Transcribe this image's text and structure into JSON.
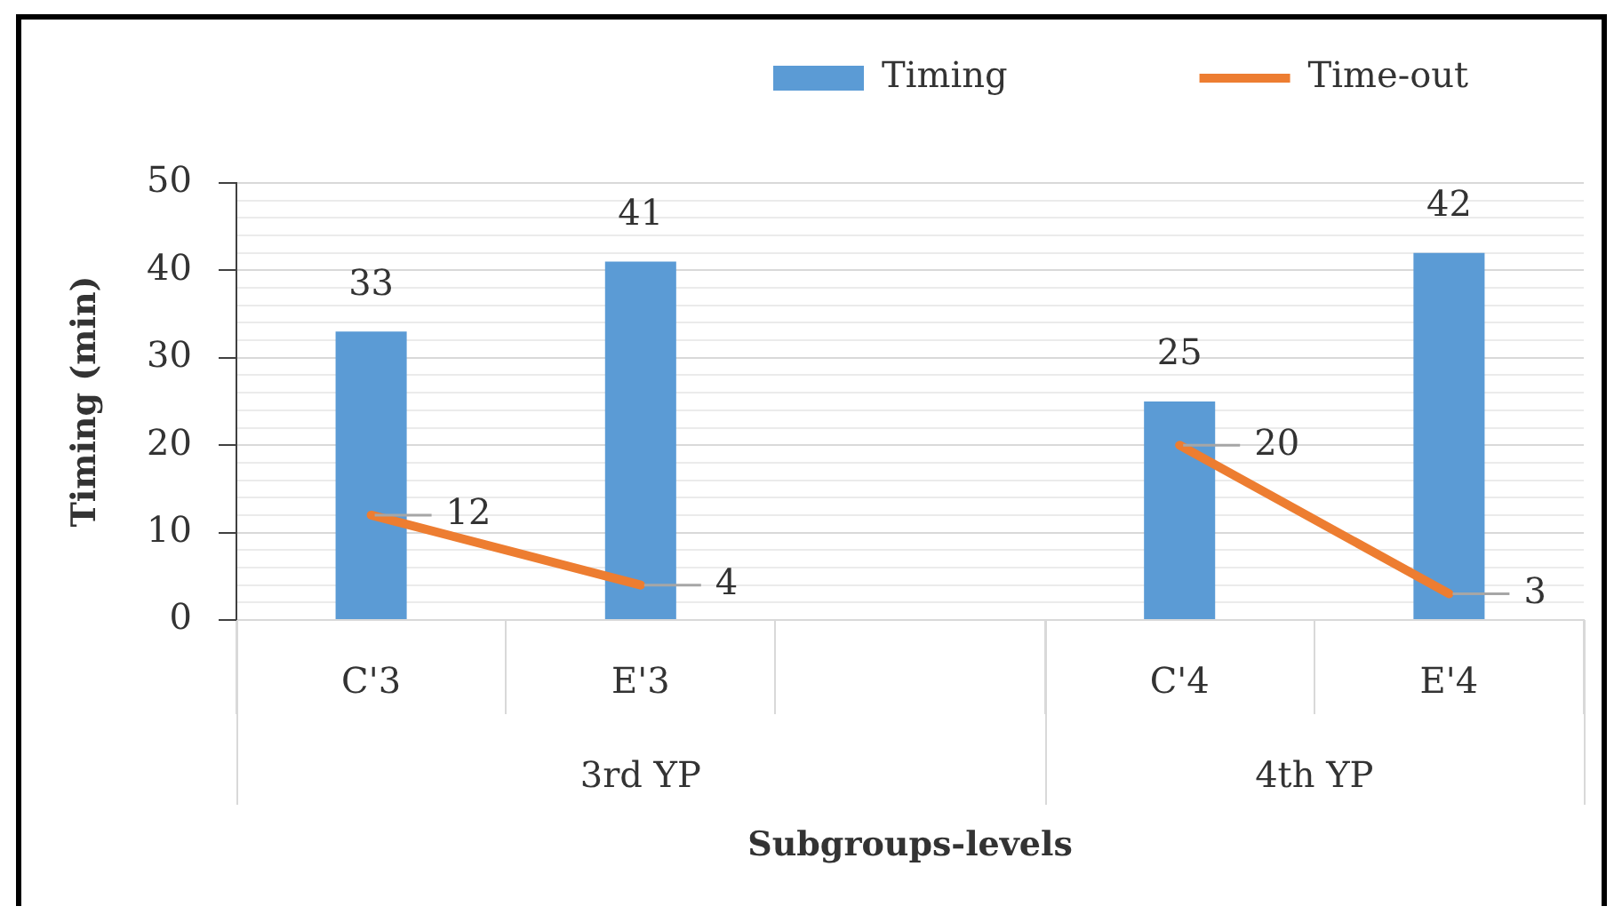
{
  "chart_data": {
    "type": "bar",
    "xlabel": "Subgroups-levels",
    "ylabel": "Timing (min)",
    "categories": [
      "C'3",
      "E'3",
      null,
      "C'4",
      "E'4"
    ],
    "series": [
      {
        "name": "Timing",
        "color": "#5b9bd5",
        "values": [
          33,
          41,
          null,
          25,
          42
        ]
      },
      {
        "name": "Time-out",
        "type": "line",
        "color": "#ed7d31",
        "values": [
          12,
          4,
          null,
          20,
          3
        ]
      }
    ],
    "ylim": [
      0,
      50
    ],
    "yticks": [
      0,
      {
        "value": 2,
        "label": null
      },
      {
        "value": 4,
        "label": null
      },
      {
        "value": 6,
        "label": null
      },
      {
        "value": 8,
        "label": null
      },
      10,
      {
        "value": 12,
        "label": null
      },
      {
        "value": 14,
        "label": null
      },
      {
        "value": 16,
        "label": null
      },
      {
        "value": 18,
        "label": null
      },
      20,
      {
        "value": 22,
        "label": null
      },
      {
        "value": 24,
        "label": null
      },
      {
        "value": 26,
        "label": null
      },
      {
        "value": 28,
        "label": null
      },
      30,
      {
        "value": 32,
        "label": null
      },
      {
        "value": 34,
        "label": null
      },
      {
        "value": 36,
        "label": null
      },
      {
        "value": 38,
        "label": null
      },
      40,
      {
        "value": 42,
        "label": null
      },
      {
        "value": 44,
        "label": null
      },
      {
        "value": 46,
        "label": null
      },
      {
        "value": 48,
        "label": null
      },
      50
    ],
    "grid": "y",
    "legend": "top",
    "data_labels": true,
    "annotations": [
      "3rd YP",
      "4th YP"
    ]
  }
}
